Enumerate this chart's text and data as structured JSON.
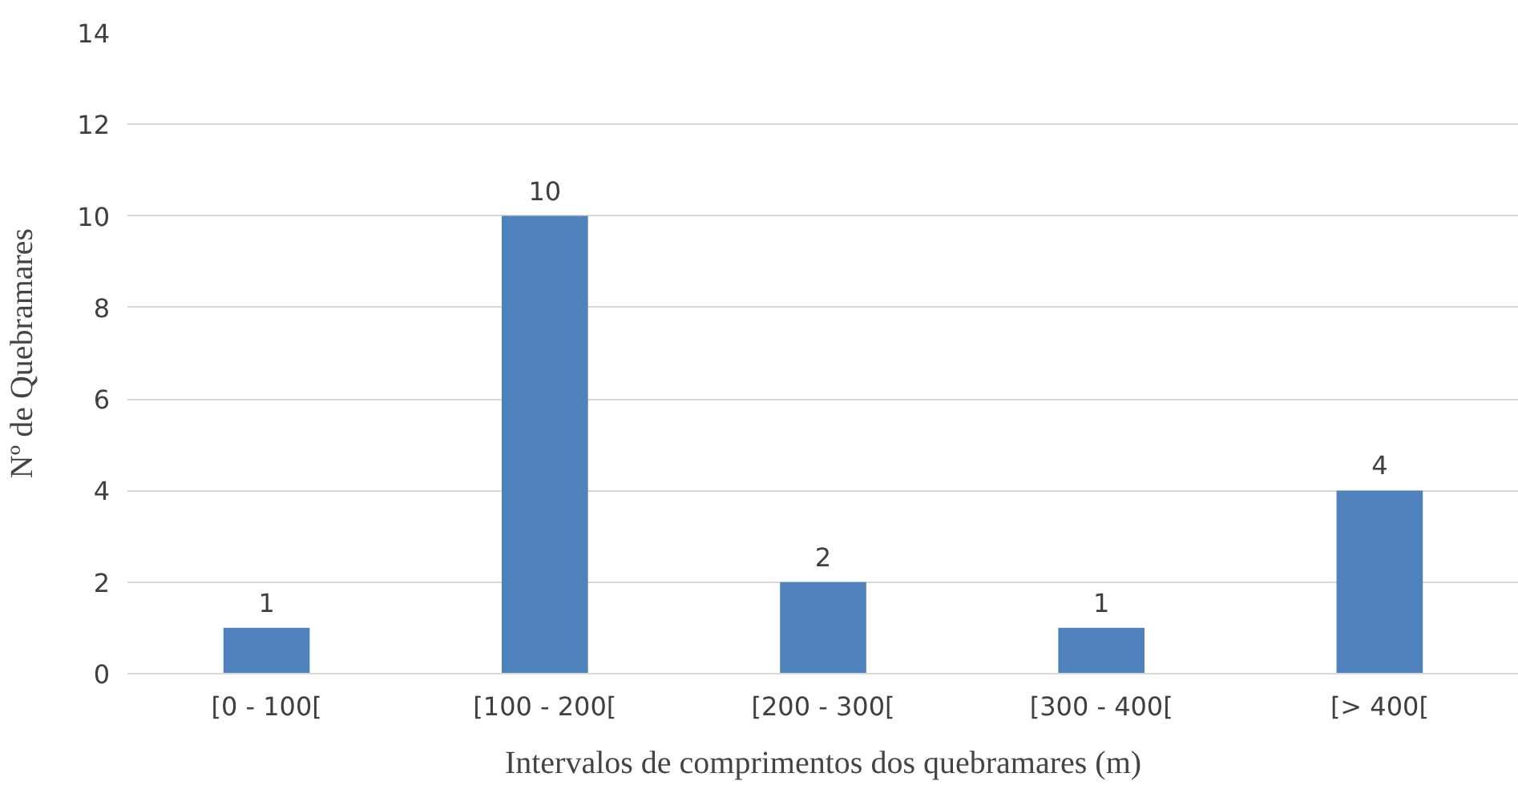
{
  "chart_data": {
    "type": "bar",
    "xlabel": "Intervalos de comprimentos dos quebramares (m)",
    "ylabel": "Nº de Quebramares",
    "categories": [
      "[0 - 100[",
      "[100 - 200[",
      "[200 - 300[",
      "[300 - 400[",
      "[> 400["
    ],
    "values": [
      1,
      10,
      2,
      1,
      4
    ],
    "color": "#4f81bd",
    "ylim": [
      0,
      14
    ],
    "yticks": [
      0,
      2,
      4,
      6,
      8,
      10,
      12,
      14
    ],
    "grid": "y",
    "data_labels": true
  }
}
